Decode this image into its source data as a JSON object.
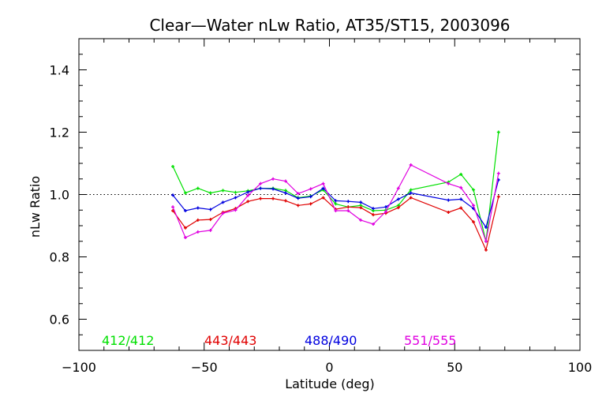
{
  "chart_data": {
    "type": "line",
    "title": "Clear—Water nLw Ratio, AT35/ST15, 2003096",
    "xlabel": "Latitude (deg)",
    "ylabel": "nLw Ratio",
    "xlim": [
      -100,
      100
    ],
    "ylim": [
      0.5,
      1.5
    ],
    "xticks": [
      -100,
      -50,
      0,
      50,
      100
    ],
    "xtick_labels": [
      "−100",
      "−50",
      "0",
      "50",
      "100"
    ],
    "yticks": [
      0.6,
      0.8,
      1.0,
      1.2,
      1.4
    ],
    "ytick_labels": [
      "0.6",
      "0.8",
      "1.0",
      "1.2",
      "1.4"
    ],
    "reference_line": 1.0,
    "grid": false,
    "legend_placement": "bottom",
    "series": [
      {
        "name": "412/412",
        "color": "#00e000",
        "x": [
          -62.5,
          -57.5,
          -52.5,
          -47.5,
          -42.5,
          -37.5,
          -32.5,
          -27.5,
          -22.5,
          -17.5,
          -12.5,
          -7.5,
          -2.5,
          2.5,
          7.5,
          12.5,
          17.5,
          22.5,
          27.5,
          32.5,
          47.5,
          52.5,
          57.5,
          62.5,
          67.5
        ],
        "y": [
          1.09,
          1.005,
          1.02,
          1.005,
          1.013,
          1.007,
          1.012,
          1.02,
          1.02,
          1.013,
          0.99,
          0.995,
          1.015,
          0.97,
          0.96,
          0.965,
          0.948,
          0.95,
          0.965,
          1.015,
          1.04,
          1.065,
          1.015,
          0.85,
          1.2
        ]
      },
      {
        "name": "443/443",
        "color": "#e00000",
        "x": [
          -62.5,
          -57.5,
          -52.5,
          -47.5,
          -42.5,
          -37.5,
          -32.5,
          -27.5,
          -22.5,
          -17.5,
          -12.5,
          -7.5,
          -2.5,
          2.5,
          7.5,
          12.5,
          17.5,
          22.5,
          27.5,
          32.5,
          47.5,
          52.5,
          57.5,
          62.5,
          67.5
        ],
        "y": [
          0.948,
          0.893,
          0.918,
          0.92,
          0.943,
          0.955,
          0.978,
          0.987,
          0.987,
          0.98,
          0.965,
          0.97,
          0.99,
          0.953,
          0.96,
          0.958,
          0.935,
          0.94,
          0.958,
          0.99,
          0.943,
          0.957,
          0.912,
          0.822,
          0.993
        ]
      },
      {
        "name": "488/490",
        "color": "#0000e0",
        "x": [
          -62.5,
          -57.5,
          -52.5,
          -47.5,
          -42.5,
          -37.5,
          -32.5,
          -27.5,
          -22.5,
          -17.5,
          -12.5,
          -7.5,
          -2.5,
          2.5,
          7.5,
          12.5,
          17.5,
          22.5,
          27.5,
          32.5,
          47.5,
          52.5,
          57.5,
          62.5,
          67.5
        ],
        "y": [
          0.998,
          0.948,
          0.957,
          0.952,
          0.975,
          0.99,
          1.008,
          1.02,
          1.018,
          1.005,
          0.988,
          0.993,
          1.02,
          0.98,
          0.978,
          0.975,
          0.955,
          0.96,
          0.985,
          1.005,
          0.982,
          0.985,
          0.955,
          0.895,
          1.047
        ]
      },
      {
        "name": "551/555",
        "color": "#e000e0",
        "x": [
          -62.5,
          -57.5,
          -52.5,
          -47.5,
          -42.5,
          -37.5,
          -32.5,
          -27.5,
          -22.5,
          -17.5,
          -12.5,
          -7.5,
          -2.5,
          2.5,
          7.5,
          12.5,
          17.5,
          22.5,
          27.5,
          32.5,
          47.5,
          52.5,
          57.5,
          62.5,
          67.5
        ],
        "y": [
          0.96,
          0.862,
          0.88,
          0.885,
          0.94,
          0.95,
          0.997,
          1.035,
          1.05,
          1.043,
          1.003,
          1.018,
          1.035,
          0.948,
          0.948,
          0.918,
          0.905,
          0.945,
          1.02,
          1.095,
          1.035,
          1.022,
          0.965,
          0.85,
          1.068
        ]
      }
    ]
  }
}
